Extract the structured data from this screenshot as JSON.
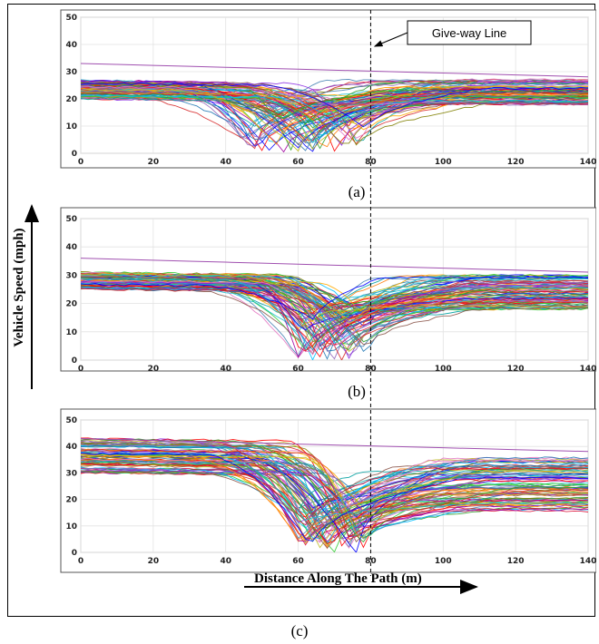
{
  "figure": {
    "ylabel": "Vehicle Speed (mph)",
    "xlabel": "Distance Along The Path (m)",
    "annotation": "Give-way Line",
    "give_way_x": 80
  },
  "chart_data": [
    {
      "type": "line",
      "caption": "(a)",
      "xlim": [
        0,
        140
      ],
      "ylim": [
        0,
        50
      ],
      "xticks": [
        0,
        20,
        40,
        60,
        80,
        100,
        120,
        140
      ],
      "yticks": [
        0,
        10,
        20,
        30,
        40,
        50
      ],
      "grid": true,
      "num_series": 90,
      "series_summary": {
        "approach_speed_range": [
          20,
          27
        ],
        "max_speed_outlier": 33,
        "min_point_x_range": [
          45,
          80
        ],
        "recovered_speed_range": [
          18,
          27
        ]
      }
    },
    {
      "type": "line",
      "caption": "(b)",
      "xlim": [
        0,
        140
      ],
      "ylim": [
        0,
        50
      ],
      "xticks": [
        0,
        20,
        40,
        60,
        80,
        100,
        120,
        140
      ],
      "yticks": [
        0,
        10,
        20,
        30,
        40,
        50
      ],
      "grid": true,
      "num_series": 90,
      "series_summary": {
        "approach_speed_range": [
          25,
          31
        ],
        "max_speed_outlier": 36,
        "min_point_x_range": [
          60,
          80
        ],
        "recovered_speed_range": [
          18,
          30
        ]
      }
    },
    {
      "type": "line",
      "caption": "(c)",
      "xlim": [
        0,
        140
      ],
      "ylim": [
        0,
        50
      ],
      "xticks": [
        0,
        20,
        40,
        60,
        80,
        100,
        120,
        140
      ],
      "yticks": [
        0,
        10,
        20,
        30,
        40,
        50
      ],
      "grid": true,
      "num_series": 90,
      "series_summary": {
        "approach_speed_range": [
          30,
          43
        ],
        "max_speed_outlier": 43,
        "min_point_x_range": [
          60,
          80
        ],
        "recovered_speed_range": [
          15,
          36
        ]
      }
    }
  ]
}
